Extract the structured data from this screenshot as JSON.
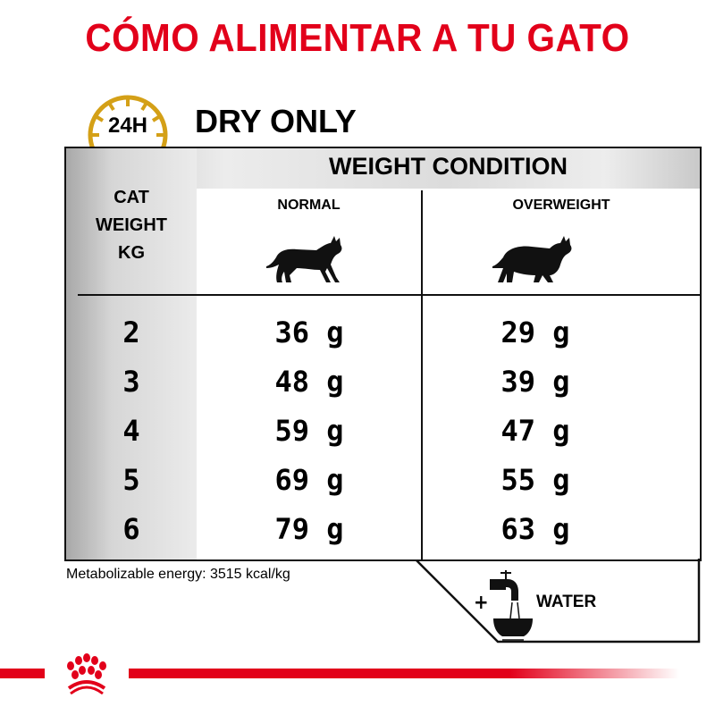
{
  "title": "CÓMO ALIMENTAR A TU GATO",
  "badge": {
    "label": "24H",
    "icon": "clock-icon",
    "color": "#d4a017"
  },
  "subtitle": "DRY ONLY",
  "table": {
    "group_header": "WEIGHT CONDITION",
    "row_header": [
      "CAT",
      "WEIGHT",
      "KG"
    ],
    "columns": [
      {
        "label": "NORMAL",
        "icon": "cat-normal-icon"
      },
      {
        "label": "OVERWEIGHT",
        "icon": "cat-overweight-icon"
      }
    ],
    "rows": [
      {
        "weight": "2",
        "normal": "36 g",
        "overweight": "29 g"
      },
      {
        "weight": "3",
        "normal": "48 g",
        "overweight": "39 g"
      },
      {
        "weight": "4",
        "normal": "59 g",
        "overweight": "47 g"
      },
      {
        "weight": "5",
        "normal": "69 g",
        "overweight": "55 g"
      },
      {
        "weight": "6",
        "normal": "79 g",
        "overweight": "63 g"
      }
    ]
  },
  "energy": "Metabolizable energy: 3515 kcal/kg",
  "water": {
    "plus": "+",
    "label": "WATER",
    "icon": "water-tap-bowl-icon"
  },
  "brand_color": "#e2001a",
  "logo": {
    "icon": "royal-canin-crown-icon"
  }
}
